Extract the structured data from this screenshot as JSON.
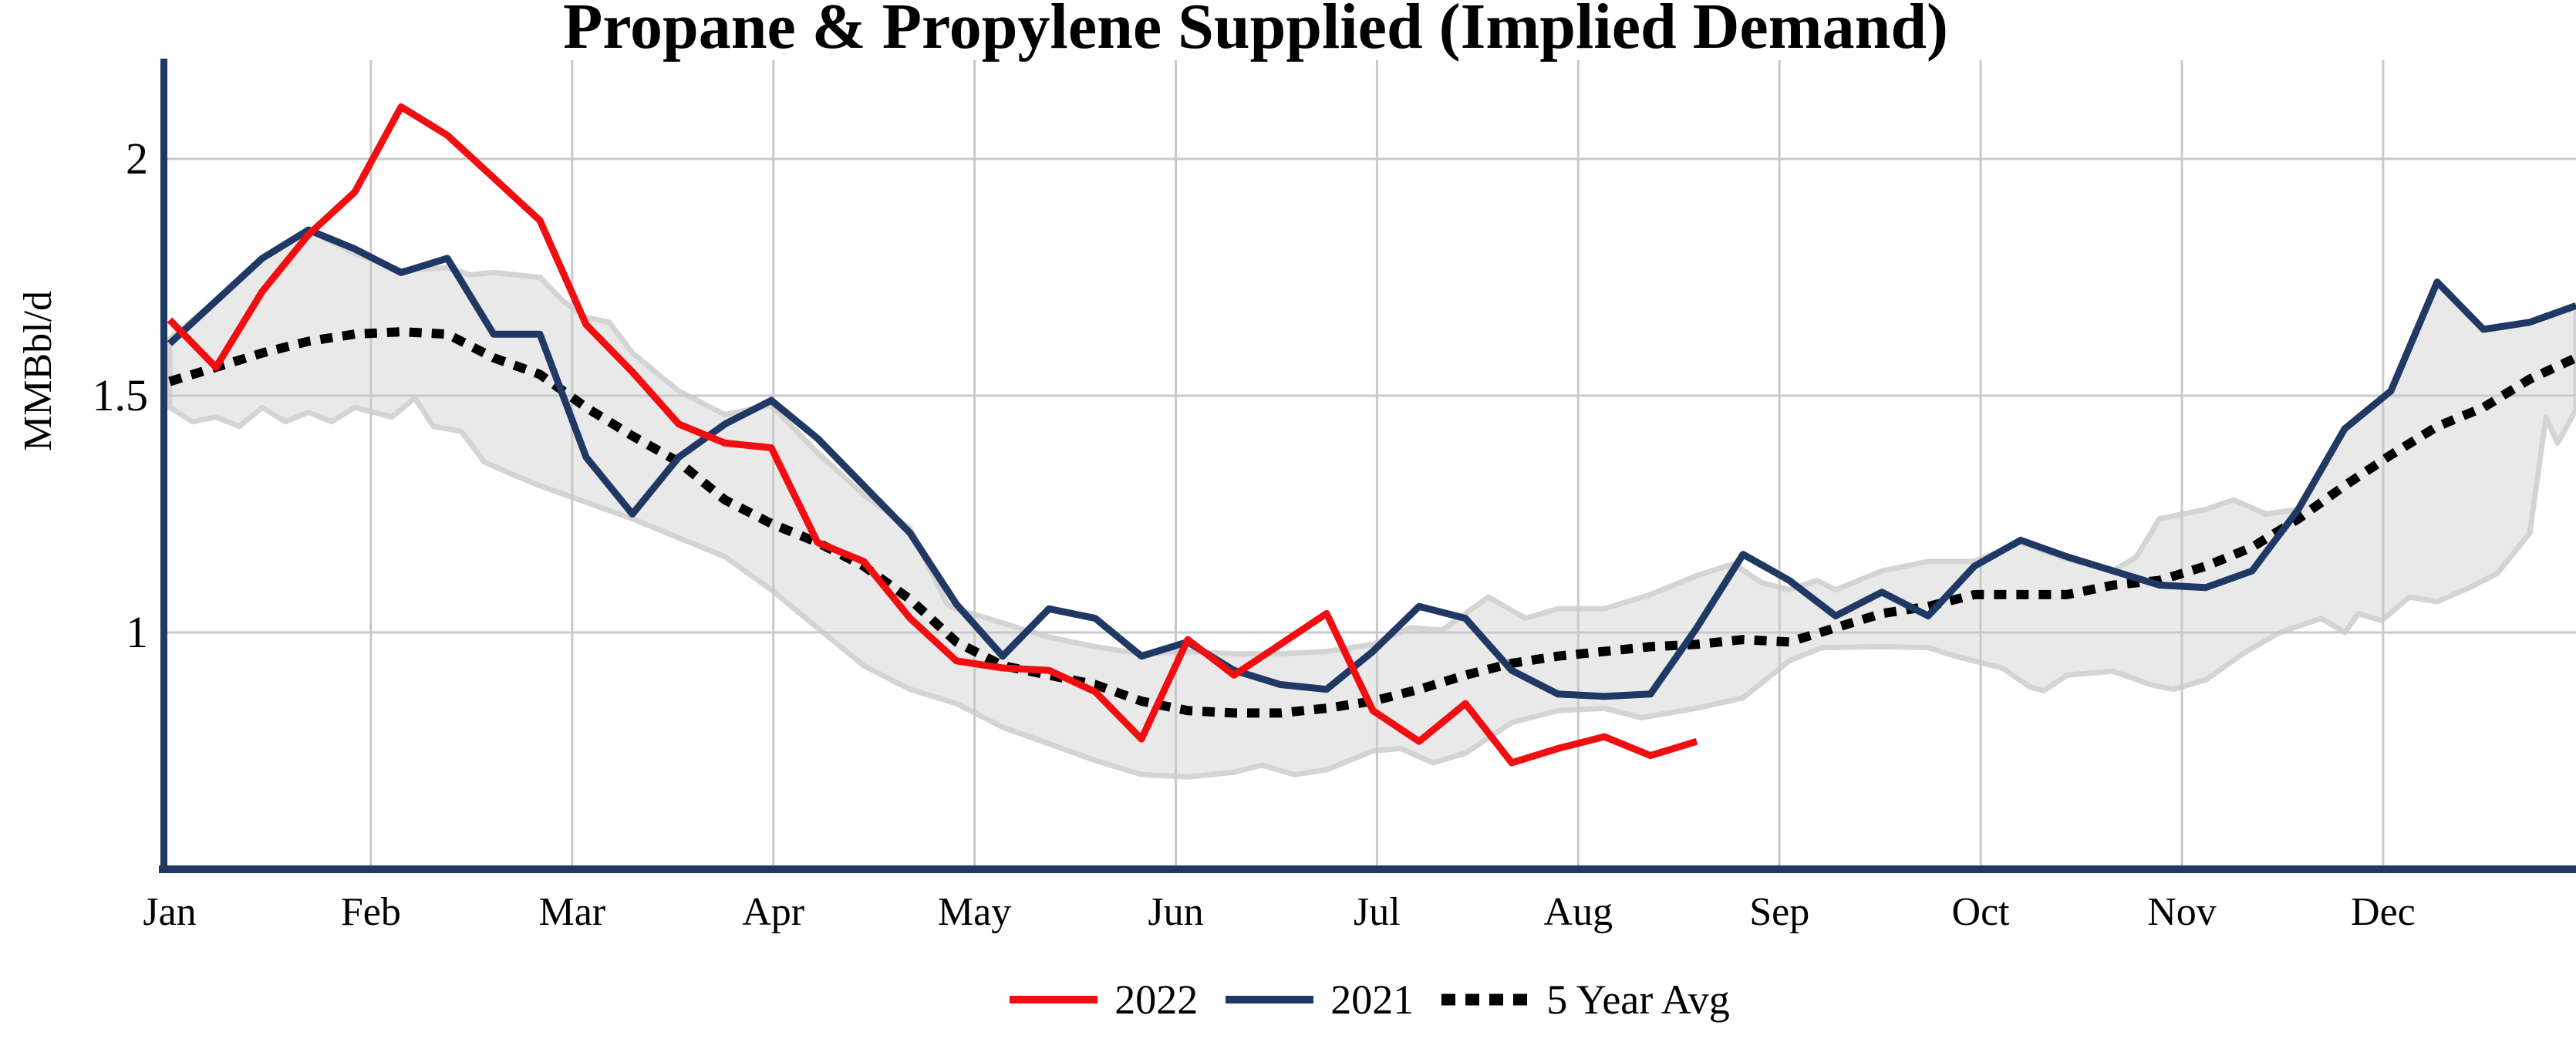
{
  "title": "Propane & Propylene Supplied (Implied Demand)",
  "y_axis": {
    "label": "MMBbl/d",
    "ticks": [
      {
        "text": "2",
        "value": 2
      },
      {
        "text": "1.5",
        "value": 1.5
      },
      {
        "text": "1",
        "value": 1
      }
    ]
  },
  "x_axis": {
    "months": [
      "Jan",
      "Feb",
      "Mar",
      "Apr",
      "May",
      "Jun",
      "Jul",
      "Aug",
      "Sep",
      "Oct",
      "Nov",
      "Dec"
    ]
  },
  "legend": [
    {
      "label": "2022",
      "color": "#f20d10",
      "style": "solid"
    },
    {
      "label": "2021",
      "color": "#1f3864",
      "style": "solid"
    },
    {
      "label": "5 Year Avg",
      "color": "#000000",
      "style": "dashed"
    }
  ],
  "style": {
    "grid_color": "#c9c9c9",
    "axis_color": "#1f3864",
    "background": "#ffffff"
  },
  "chart_data": {
    "type": "line",
    "title": "Propane & Propylene Supplied (Implied Demand)",
    "ylabel": "MMBbl/d",
    "unit": "MMBbl/d",
    "ylim": [
      0.5,
      2.21
    ],
    "yticks": [
      1,
      1.5,
      2
    ],
    "grid": true,
    "legend_position": "bottom",
    "x_months": [
      "Jan",
      "Feb",
      "Mar",
      "Apr",
      "May",
      "Jun",
      "Jul",
      "Aug",
      "Sep",
      "Oct",
      "Nov",
      "Dec"
    ],
    "x_resolution": "weekly",
    "weeks_total": 53,
    "series": [
      {
        "name": "2022",
        "color": "#f20d10",
        "style": "solid",
        "start_week": 1,
        "values": [
          1.66,
          1.56,
          1.72,
          1.84,
          1.93,
          2.11,
          2.05,
          1.96,
          1.87,
          1.65,
          1.55,
          1.44,
          1.4,
          1.39,
          1.19,
          1.15,
          1.03,
          0.94,
          0.925,
          0.92,
          0.875,
          0.775,
          0.985,
          0.91,
          0.975,
          1.04,
          0.835,
          0.77,
          0.85,
          0.725,
          0.755,
          0.78,
          0.74,
          0.77
        ]
      },
      {
        "name": "2021",
        "color": "#1f3864",
        "style": "solid",
        "start_week": 1,
        "values": [
          1.61,
          1.7,
          1.79,
          1.85,
          1.81,
          1.76,
          1.79,
          1.63,
          1.63,
          1.37,
          1.25,
          1.37,
          1.44,
          1.49,
          1.41,
          1.31,
          1.21,
          1.06,
          0.95,
          1.05,
          1.03,
          0.95,
          0.98,
          0.92,
          0.89,
          0.88,
          0.96,
          1.055,
          1.03,
          0.92,
          0.87,
          0.865,
          0.87,
          1.01,
          1.165,
          1.11,
          1.035,
          1.085,
          1.035,
          1.14,
          1.195,
          1.16,
          1.13,
          1.1,
          1.095,
          1.13,
          1.26,
          1.43,
          1.51,
          1.74,
          1.64,
          1.655,
          1.69
        ]
      },
      {
        "name": "5 Year Avg",
        "color": "#000000",
        "style": "dashed",
        "start_week": 1,
        "values": [
          1.53,
          1.56,
          1.59,
          1.615,
          1.63,
          1.635,
          1.63,
          1.58,
          1.545,
          1.475,
          1.415,
          1.36,
          1.28,
          1.23,
          1.19,
          1.14,
          1.07,
          0.98,
          0.93,
          0.91,
          0.89,
          0.855,
          0.835,
          0.83,
          0.83,
          0.84,
          0.855,
          0.88,
          0.91,
          0.935,
          0.95,
          0.96,
          0.97,
          0.975,
          0.985,
          0.98,
          1.01,
          1.04,
          1.055,
          1.08,
          1.08,
          1.08,
          1.1,
          1.11,
          1.14,
          1.18,
          1.24,
          1.31,
          1.375,
          1.435,
          1.475,
          1.535,
          1.58
        ]
      }
    ],
    "band": {
      "name": "5 year range",
      "fill": "#e9e9e9",
      "edge": "#d4d4d4",
      "upper": [
        [
          1,
          1.62
        ],
        [
          2,
          1.7
        ],
        [
          3,
          1.79
        ],
        [
          4,
          1.85
        ],
        [
          5,
          1.8
        ],
        [
          6,
          1.765
        ],
        [
          7,
          1.77
        ],
        [
          7.5,
          1.755
        ],
        [
          8,
          1.76
        ],
        [
          9,
          1.75
        ],
        [
          9.5,
          1.7
        ],
        [
          10,
          1.665
        ],
        [
          10.5,
          1.655
        ],
        [
          11,
          1.59
        ],
        [
          12,
          1.51
        ],
        [
          13,
          1.46
        ],
        [
          14,
          1.48
        ],
        [
          15,
          1.38
        ],
        [
          16,
          1.29
        ],
        [
          17,
          1.22
        ],
        [
          17.8,
          1.06
        ],
        [
          18,
          1.05
        ],
        [
          19,
          1.02
        ],
        [
          20,
          0.99
        ],
        [
          21,
          0.97
        ],
        [
          22,
          0.955
        ],
        [
          23,
          0.96
        ],
        [
          24,
          0.955
        ],
        [
          25,
          0.955
        ],
        [
          26,
          0.96
        ],
        [
          27,
          0.975
        ],
        [
          27.8,
          1.01
        ],
        [
          28.5,
          1.005
        ],
        [
          29.5,
          1.075
        ],
        [
          30.3,
          1.03
        ],
        [
          31,
          1.05
        ],
        [
          32,
          1.05
        ],
        [
          33,
          1.08
        ],
        [
          34,
          1.12
        ],
        [
          34.8,
          1.145
        ],
        [
          35.4,
          1.105
        ],
        [
          36,
          1.09
        ],
        [
          36.6,
          1.11
        ],
        [
          37,
          1.09
        ],
        [
          38,
          1.13
        ],
        [
          39,
          1.15
        ],
        [
          40,
          1.15
        ],
        [
          41,
          1.19
        ],
        [
          42,
          1.155
        ],
        [
          43,
          1.13
        ],
        [
          43.5,
          1.16
        ],
        [
          44,
          1.24
        ],
        [
          45,
          1.26
        ],
        [
          45.6,
          1.28
        ],
        [
          46.3,
          1.25
        ],
        [
          47,
          1.26
        ],
        [
          48,
          1.43
        ],
        [
          49,
          1.51
        ],
        [
          50,
          1.74
        ],
        [
          51,
          1.64
        ],
        [
          52,
          1.655
        ],
        [
          53,
          1.69
        ]
      ],
      "lower": [
        [
          1,
          1.475
        ],
        [
          1.5,
          1.445
        ],
        [
          2,
          1.455
        ],
        [
          2.5,
          1.435
        ],
        [
          3,
          1.475
        ],
        [
          3.5,
          1.445
        ],
        [
          4,
          1.465
        ],
        [
          4.5,
          1.445
        ],
        [
          5,
          1.475
        ],
        [
          5.8,
          1.455
        ],
        [
          6.3,
          1.495
        ],
        [
          6.7,
          1.435
        ],
        [
          7.3,
          1.425
        ],
        [
          7.8,
          1.36
        ],
        [
          8.5,
          1.33
        ],
        [
          9,
          1.31
        ],
        [
          10,
          1.275
        ],
        [
          11,
          1.24
        ],
        [
          12,
          1.2
        ],
        [
          13,
          1.16
        ],
        [
          14,
          1.09
        ],
        [
          15,
          1.01
        ],
        [
          16,
          0.93
        ],
        [
          17,
          0.88
        ],
        [
          18,
          0.85
        ],
        [
          19,
          0.8
        ],
        [
          20,
          0.765
        ],
        [
          21,
          0.73
        ],
        [
          22,
          0.7
        ],
        [
          23,
          0.695
        ],
        [
          24,
          0.705
        ],
        [
          24.6,
          0.72
        ],
        [
          25.3,
          0.7
        ],
        [
          26,
          0.71
        ],
        [
          27,
          0.75
        ],
        [
          27.6,
          0.755
        ],
        [
          28.3,
          0.725
        ],
        [
          29,
          0.745
        ],
        [
          30,
          0.81
        ],
        [
          31,
          0.835
        ],
        [
          32,
          0.84
        ],
        [
          32.8,
          0.82
        ],
        [
          34,
          0.84
        ],
        [
          35,
          0.862
        ],
        [
          36,
          0.94
        ],
        [
          36.7,
          0.968
        ],
        [
          38,
          0.97
        ],
        [
          39,
          0.968
        ],
        [
          39.7,
          0.947
        ],
        [
          40.6,
          0.925
        ],
        [
          41.2,
          0.885
        ],
        [
          41.5,
          0.877
        ],
        [
          42,
          0.91
        ],
        [
          43,
          0.918
        ],
        [
          43.8,
          0.89
        ],
        [
          44.3,
          0.88
        ],
        [
          45,
          0.9
        ],
        [
          45.8,
          0.955
        ],
        [
          46.6,
          1.0
        ],
        [
          47.5,
          1.03
        ],
        [
          48,
          1.0
        ],
        [
          48.3,
          1.04
        ],
        [
          48.8,
          1.025
        ],
        [
          49.4,
          1.075
        ],
        [
          50,
          1.065
        ],
        [
          50.7,
          1.095
        ],
        [
          51.3,
          1.125
        ],
        [
          52,
          1.21
        ],
        [
          52.35,
          1.455
        ],
        [
          52.6,
          1.4
        ],
        [
          53,
          1.47
        ]
      ]
    }
  }
}
